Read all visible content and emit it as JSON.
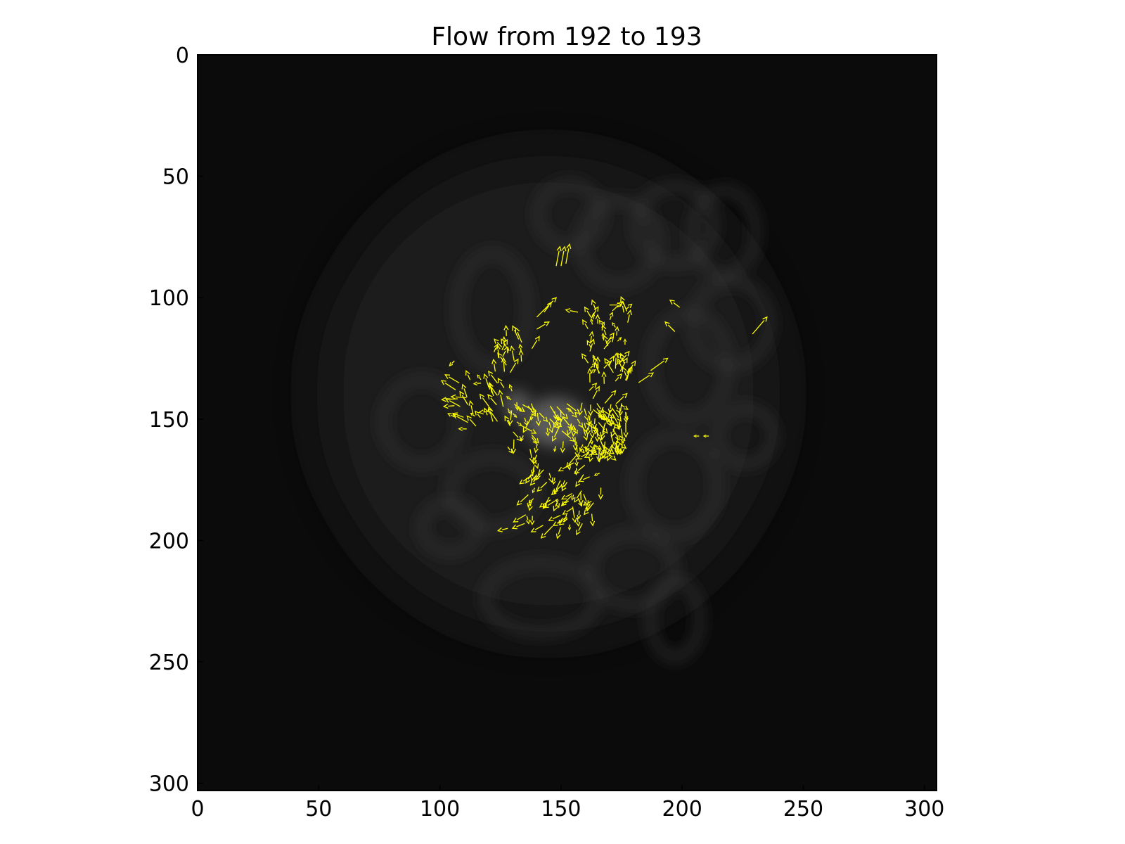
{
  "chart_data": {
    "type": "quiver",
    "title": "Flow from 192 to 193",
    "xlabel": "",
    "ylabel": "",
    "xlim": [
      0,
      305
    ],
    "ylim": [
      303,
      0
    ],
    "x_ticks": [
      "0",
      "50",
      "100",
      "150",
      "200",
      "250",
      "300"
    ],
    "y_ticks": [
      "0",
      "50",
      "100",
      "150",
      "200",
      "250",
      "300"
    ],
    "background": "grayscale microscopy frame (dark, cells faintly visible)",
    "arrow_color": "#ffff00",
    "grid": false,
    "clusters": [
      {
        "center": [
          150,
          158
        ],
        "extent": [
          [
            128,
            143
          ],
          [
            177,
            163
          ]
        ],
        "dir": [
          0.3,
          1.0
        ],
        "count": 120
      },
      {
        "center": [
          143,
          176
        ],
        "extent": [
          [
            135,
            163
          ],
          [
            167,
            195
          ]
        ],
        "dir": [
          -0.4,
          1.0
        ],
        "count": 70
      },
      {
        "center": [
          168,
          125
        ],
        "extent": [
          [
            161,
            104
          ],
          [
            178,
            145
          ]
        ],
        "dir": [
          0.2,
          -1.0
        ],
        "count": 55
      },
      {
        "center": [
          120,
          145
        ],
        "extent": [
          [
            106,
            133
          ],
          [
            130,
            155
          ]
        ],
        "dir": [
          -0.8,
          -0.6
        ],
        "count": 35
      },
      {
        "center": [
          128,
          123
        ],
        "extent": [
          [
            121,
            115
          ],
          [
            134,
            132
          ]
        ],
        "dir": [
          0.0,
          -1.0
        ],
        "count": 18
      }
    ],
    "sparse_arrows": [
      {
        "x": 148,
        "y": 87,
        "u": 1.5,
        "v": -8
      },
      {
        "x": 150,
        "y": 87,
        "u": 1.5,
        "v": -8
      },
      {
        "x": 152,
        "y": 86,
        "u": 1.5,
        "v": -8
      },
      {
        "x": 140,
        "y": 108,
        "u": 8,
        "v": -8
      },
      {
        "x": 143,
        "y": 106,
        "u": 3,
        "v": -4
      },
      {
        "x": 140,
        "y": 113,
        "u": 5,
        "v": -3
      },
      {
        "x": 138,
        "y": 121,
        "u": 3,
        "v": -5
      },
      {
        "x": 157,
        "y": 106,
        "u": -5,
        "v": -1
      },
      {
        "x": 170,
        "y": 103,
        "u": 5,
        "v": 0
      },
      {
        "x": 182,
        "y": 135,
        "u": 6,
        "v": -4
      },
      {
        "x": 187,
        "y": 130,
        "u": 7,
        "v": -5
      },
      {
        "x": 197,
        "y": 114,
        "u": -4,
        "v": -4
      },
      {
        "x": 199,
        "y": 104,
        "u": -4,
        "v": -3
      },
      {
        "x": 229,
        "y": 115,
        "u": 6,
        "v": -7
      },
      {
        "x": 207,
        "y": 157,
        "u": -2,
        "v": 0
      },
      {
        "x": 211,
        "y": 157,
        "u": -2,
        "v": 0
      },
      {
        "x": 106,
        "y": 126,
        "u": -2,
        "v": 2
      },
      {
        "x": 128,
        "y": 195,
        "u": -4,
        "v": 1
      },
      {
        "x": 135,
        "y": 193,
        "u": -5,
        "v": 2
      }
    ]
  }
}
